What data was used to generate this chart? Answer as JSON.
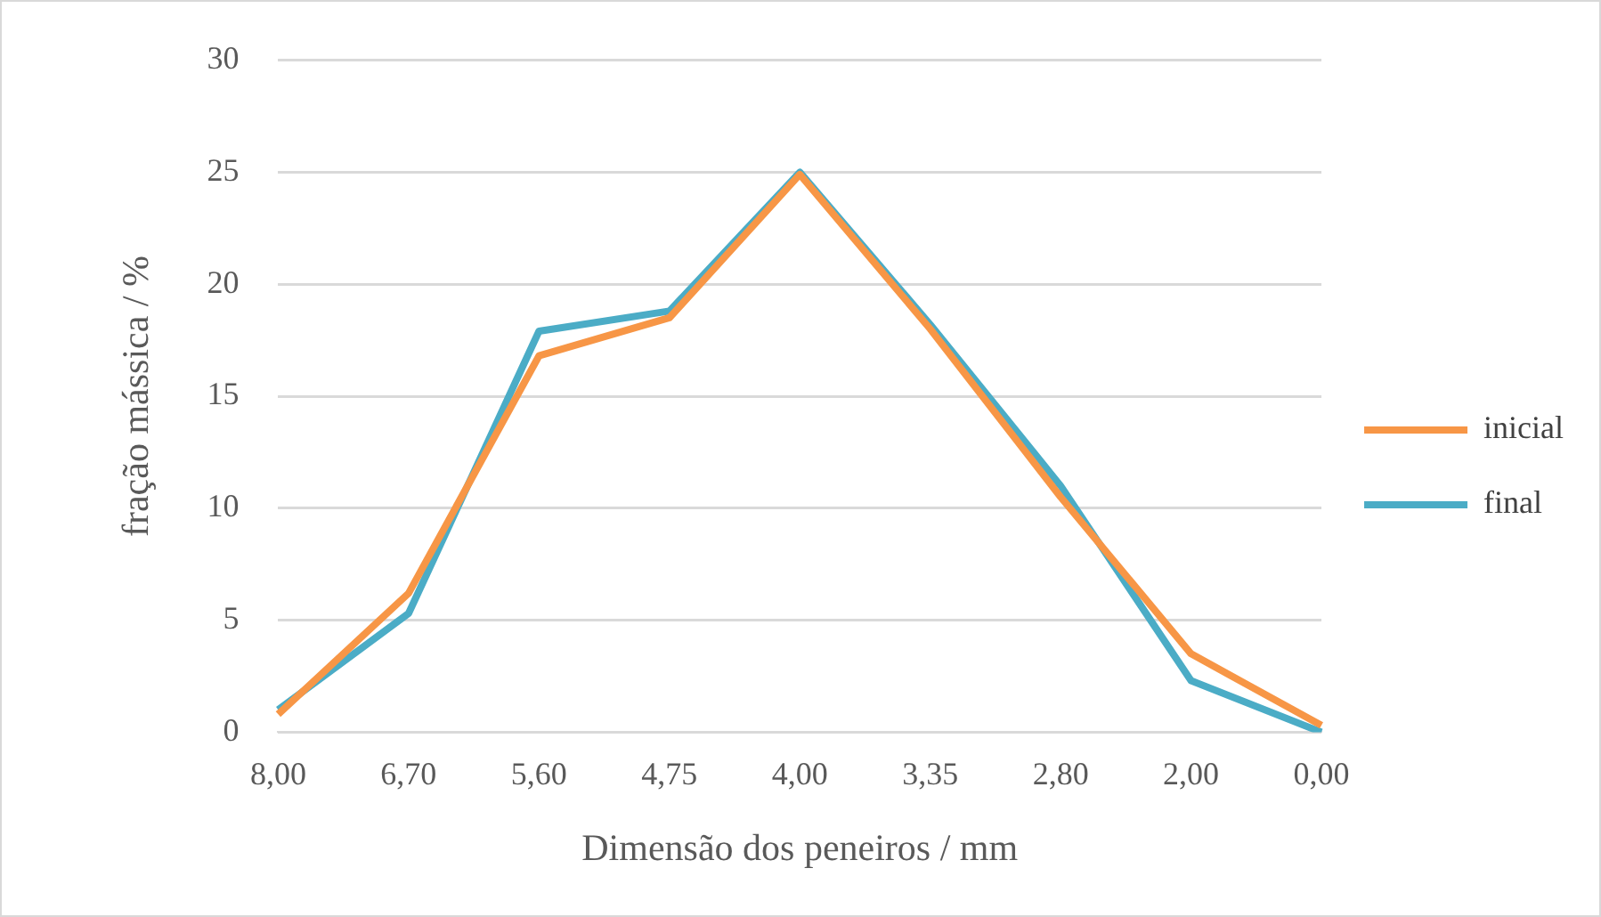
{
  "chart_data": {
    "type": "line",
    "xlabel": "Dimensão dos peneiros / mm",
    "ylabel": "fração mássica / %",
    "categories": [
      "8,00",
      "6,70",
      "5,60",
      "4,75",
      "4,00",
      "3,35",
      "2,80",
      "2,00",
      "0,00"
    ],
    "series": [
      {
        "name": "inicial",
        "color": "#f79646",
        "values": [
          0.8,
          6.2,
          16.8,
          18.5,
          24.9,
          18.0,
          10.5,
          3.5,
          0.3
        ]
      },
      {
        "name": "final",
        "color": "#4bacc6",
        "values": [
          1.0,
          5.3,
          17.9,
          18.8,
          25.0,
          18.2,
          11.0,
          2.3,
          0.0
        ]
      }
    ],
    "ylim": [
      0,
      30
    ],
    "yticks": [
      0,
      5,
      10,
      15,
      20,
      25,
      30
    ],
    "grid": "y",
    "legend": "right",
    "marker": "none"
  }
}
